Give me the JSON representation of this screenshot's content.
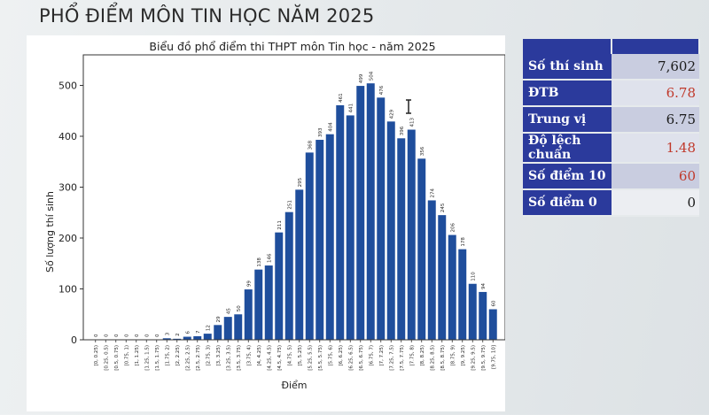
{
  "slide": {
    "title": "PHỔ ĐIỂM MÔN TIN HỌC NĂM 2025"
  },
  "chart_data": {
    "type": "bar",
    "title": "Biểu đồ phổ điểm thi THPT môn Tin học - năm 2025",
    "xlabel": "Điểm",
    "ylabel": "Số lượng thí sinh",
    "ylim": [
      0,
      560
    ],
    "yticks": [
      0,
      100,
      200,
      300,
      400,
      500
    ],
    "grid": false,
    "bar_color": "#1f4e9c",
    "categories": [
      "[0, 0.25)",
      "[0.25, 0.5)",
      "[0.5, 0.75)",
      "[0.75, 1)",
      "[1, 1.25)",
      "[1.25, 1.5)",
      "[1.5, 1.75)",
      "[1.75, 2)",
      "[2, 2.25)",
      "[2.25, 2.5)",
      "[2.5, 2.75)",
      "[2.75, 3)",
      "[3, 3.25)",
      "[3.25, 3.5)",
      "[3.5, 3.75)",
      "[3.75, 4)",
      "[4, 4.25)",
      "[4.25, 4.5)",
      "[4.5, 4.75)",
      "[4.75, 5)",
      "[5, 5.25)",
      "[5.25, 5.5)",
      "[5.5, 5.75)",
      "[5.75, 6)",
      "[6, 6.25)",
      "[6.25, 6.5)",
      "[6.5, 6.75)",
      "[6.75, 7)",
      "[7, 7.25)",
      "[7.25, 7.5)",
      "[7.5, 7.75)",
      "[7.75, 8)",
      "[8, 8.25)",
      "[8.25, 8.5)",
      "[8.5, 8.75)",
      "[8.75, 9)",
      "[9, 9.25)",
      "[9.25, 9.5)",
      "[9.5, 9.75)",
      "[9.75, 10]"
    ],
    "values": [
      0,
      0,
      0,
      0,
      0,
      0,
      0,
      3,
      2,
      6,
      7,
      12,
      29,
      45,
      50,
      99,
      138,
      146,
      211,
      251,
      295,
      368,
      393,
      404,
      461,
      441,
      499,
      504,
      476,
      429,
      396,
      413,
      356,
      274,
      245,
      206,
      178,
      110,
      94,
      60
    ]
  },
  "stats": {
    "rows": [
      {
        "label": "Số thí sinh",
        "value": "7,602",
        "color": "#1a1a1a"
      },
      {
        "label": "ĐTB",
        "value": "6.78",
        "color": "#c0392b"
      },
      {
        "label": "Trung vị",
        "value": "6.75",
        "color": "#1a1a1a"
      },
      {
        "label": "Độ lệch chuẩn",
        "value": "1.48",
        "color": "#c0392b"
      },
      {
        "label": "Số điểm 10",
        "value": "60",
        "color": "#c0392b"
      },
      {
        "label": "Số điểm 0",
        "value": "0",
        "color": "#1a1a1a"
      }
    ]
  }
}
